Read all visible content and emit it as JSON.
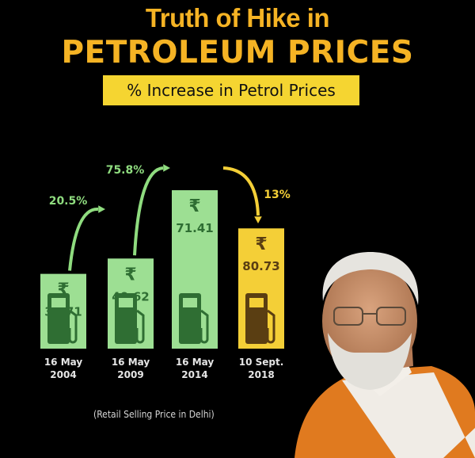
{
  "header": {
    "title_line1": "Truth of Hike in",
    "title_line2": "PETROLEUM PRICES",
    "subtitle": "% Increase in Petrol Prices"
  },
  "footnote": "(Retail Selling Price in Delhi)",
  "colors": {
    "title": "#f5b324",
    "subtitle_bg": "#f5d531",
    "bar_green": "#9ddf93",
    "pump_green": "#2f6e33",
    "bar_yellow": "#f4cf37",
    "pump_brown": "#5a3e12",
    "arrow_green": "#8fdc7f",
    "arrow_yellow": "#f4cf37"
  },
  "chart_data": {
    "type": "bar",
    "currency_symbol": "₹",
    "categories": [
      "16 May\n2004",
      "16 May\n2009",
      "16 May\n2014",
      "10 Sept.\n2018"
    ],
    "values": [
      33.71,
      40.62,
      71.41,
      80.73
    ],
    "value_labels": [
      "33.71",
      "40.62",
      "71.41",
      "80.73"
    ],
    "bar_colors": [
      "green",
      "green",
      "green",
      "yellow"
    ],
    "increase_labels": [
      "20.5%",
      "75.8%",
      "13%"
    ]
  }
}
